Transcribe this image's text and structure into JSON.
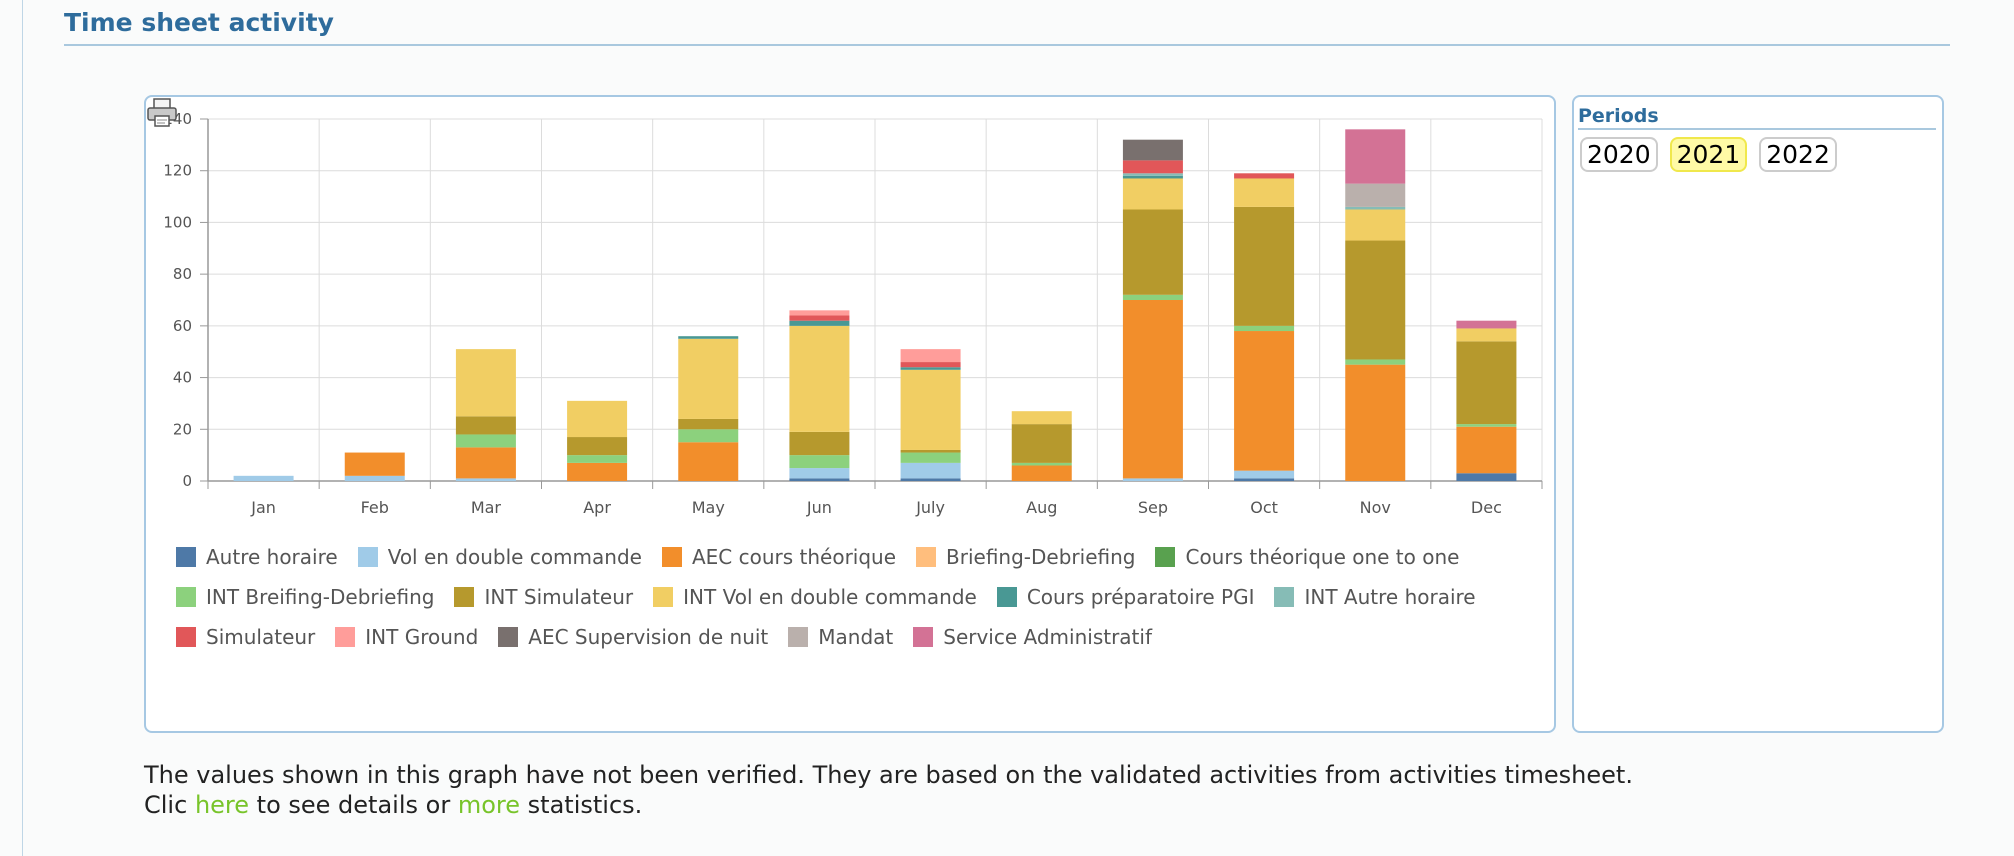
{
  "page": {
    "title": "Time sheet activity",
    "note_line1": "The values shown in this graph have not been verified. They are based on the validated activities from activities timesheet.",
    "note_clic": "Clic",
    "note_here": "here",
    "note_mid": "to see details or",
    "note_more": "more",
    "note_end": "statistics."
  },
  "periods": {
    "title": "Periods",
    "options": [
      "2020",
      "2021",
      "2022"
    ],
    "selected": "2021"
  },
  "icons": {
    "print": "printer-icon"
  },
  "chart_data": {
    "type": "bar",
    "stacked": true,
    "categories": [
      "Jan",
      "Feb",
      "Mar",
      "Apr",
      "May",
      "Jun",
      "July",
      "Aug",
      "Sep",
      "Oct",
      "Nov",
      "Dec"
    ],
    "ylim": [
      0,
      140
    ],
    "yticks": [
      0,
      20,
      40,
      60,
      80,
      100,
      120,
      140
    ],
    "grid": true,
    "legend_position": "bottom",
    "series": [
      {
        "name": "Autre horaire",
        "color": "#4e79a7",
        "values": [
          0,
          0,
          0,
          0,
          0,
          1,
          1,
          0,
          0,
          1,
          0,
          3
        ]
      },
      {
        "name": "Vol en double commande",
        "color": "#a0cbe8",
        "values": [
          2,
          2,
          1,
          0,
          0,
          4,
          6,
          0,
          1,
          3,
          0,
          0
        ]
      },
      {
        "name": "AEC cours théorique",
        "color": "#f28e2b",
        "values": [
          0,
          9,
          12,
          7,
          15,
          0,
          0,
          6,
          69,
          54,
          45,
          18
        ]
      },
      {
        "name": "Briefing-Debriefing",
        "color": "#ffbe7d",
        "values": [
          0,
          0,
          0,
          0,
          0,
          0,
          0,
          0,
          0,
          0,
          0,
          0
        ]
      },
      {
        "name": "Cours théorique one to one",
        "color": "#59a14f",
        "values": [
          0,
          0,
          0,
          0,
          0,
          0,
          0,
          0,
          0,
          0,
          0,
          0
        ]
      },
      {
        "name": "INT Breifing-Debriefing",
        "color": "#8cd17d",
        "values": [
          0,
          0,
          5,
          3,
          5,
          5,
          4,
          1,
          2,
          2,
          2,
          1
        ]
      },
      {
        "name": "INT Simulateur",
        "color": "#b6992d",
        "values": [
          0,
          0,
          7,
          7,
          4,
          9,
          1,
          15,
          33,
          46,
          46,
          32
        ]
      },
      {
        "name": "INT Vol en double commande",
        "color": "#f1ce63",
        "values": [
          0,
          0,
          26,
          14,
          31,
          41,
          31,
          5,
          12,
          11,
          12,
          5
        ]
      },
      {
        "name": "Cours préparatoire PGI",
        "color": "#499894",
        "values": [
          0,
          0,
          0,
          0,
          1,
          2,
          1,
          0,
          1,
          0,
          0,
          0
        ]
      },
      {
        "name": "INT Autre horaire",
        "color": "#86bcb6",
        "values": [
          0,
          0,
          0,
          0,
          0,
          0,
          0,
          0,
          1,
          0,
          1,
          0
        ]
      },
      {
        "name": "Simulateur",
        "color": "#e15759",
        "values": [
          0,
          0,
          0,
          0,
          0,
          2,
          2,
          0,
          5,
          2,
          0,
          0
        ]
      },
      {
        "name": "INT Ground",
        "color": "#ff9d9a",
        "values": [
          0,
          0,
          0,
          0,
          0,
          2,
          5,
          0,
          0,
          0,
          0,
          0
        ]
      },
      {
        "name": "AEC Supervision de nuit",
        "color": "#79706e",
        "values": [
          0,
          0,
          0,
          0,
          0,
          0,
          0,
          0,
          8,
          0,
          0,
          0
        ]
      },
      {
        "name": "Mandat",
        "color": "#bab0ac",
        "values": [
          0,
          0,
          0,
          0,
          0,
          0,
          0,
          0,
          0,
          0,
          9,
          0
        ]
      },
      {
        "name": "Service Administratif",
        "color": "#d37295",
        "values": [
          0,
          0,
          0,
          0,
          0,
          0,
          0,
          0,
          0,
          0,
          21,
          3
        ]
      }
    ]
  }
}
